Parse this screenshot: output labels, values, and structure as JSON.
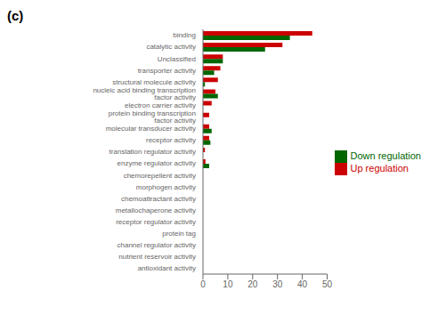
{
  "chart_data": {
    "type": "bar",
    "orientation": "horizontal",
    "title": "(c)",
    "categories": [
      "binding",
      "catalytic activity",
      "Unclassified",
      "transporter activity",
      "structural molecule activity",
      "nucleic acid binding transcription factor activity",
      "electron carrier activity",
      "protein binding transcription factor activity",
      "molecular transducer activity",
      "receptor activity",
      "translation regulator activity",
      "enzyme regulator activity",
      "chemorepellent activity",
      "morphogen activity",
      "chemoattractant activity",
      "metallochaperone activity",
      "receptor regulator activity",
      "protein tag",
      "channel regulator activity",
      "nutrient reservoir activity",
      "antioxidant activity"
    ],
    "series": [
      {
        "name": "Up regulation",
        "color": "#cc0000",
        "values": [
          44,
          32,
          8,
          7,
          6,
          5,
          3.5,
          2.5,
          2.5,
          2.5,
          0.8,
          1,
          0,
          0,
          0,
          0,
          0,
          0,
          0,
          0,
          0
        ]
      },
      {
        "name": "Down regulation",
        "color": "#006600",
        "values": [
          35,
          25,
          8,
          4.5,
          0.8,
          6,
          0,
          0,
          3.5,
          3,
          0,
          2.5,
          0,
          0,
          0,
          0,
          0,
          0,
          0,
          0,
          0
        ]
      }
    ],
    "xlim": [
      0,
      50
    ],
    "xticks": [
      0,
      10,
      20,
      30,
      40,
      50
    ],
    "grid": false,
    "legend": "right"
  }
}
